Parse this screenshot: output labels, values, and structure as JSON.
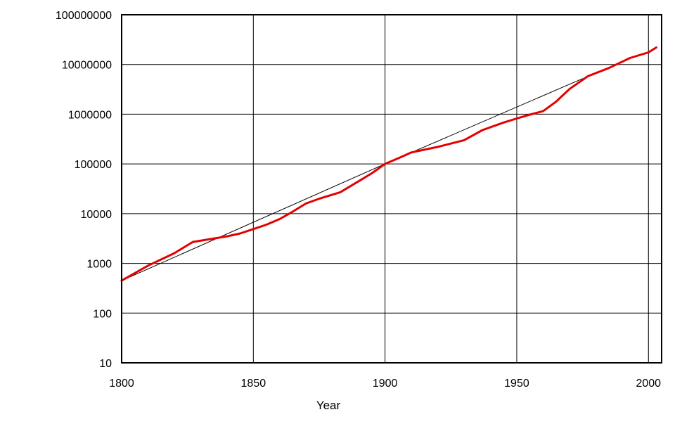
{
  "chart_data": {
    "type": "line",
    "title": "",
    "xlabel": "Year",
    "ylabel": "",
    "xlim": [
      1800,
      2005
    ],
    "ylim": [
      10,
      100000000
    ],
    "yscale": "log",
    "grid": true,
    "x_ticks": [
      "1800",
      "1850",
      "1900",
      "1950",
      "2000"
    ],
    "y_ticks": [
      "10",
      "100",
      "1000",
      "10000",
      "100000",
      "1000000",
      "10000000",
      "100000000"
    ],
    "series": [
      {
        "color": "#e30000",
        "style": "thick",
        "x": [
          1800,
          1810,
          1820,
          1827,
          1840,
          1845,
          1850,
          1855,
          1860,
          1865,
          1870,
          1875,
          1883,
          1890,
          1895,
          1900,
          1905,
          1910,
          1920,
          1930,
          1937,
          1945,
          1950,
          1955,
          1960,
          1965,
          1970,
          1977,
          1985,
          1993,
          2000,
          2003
        ],
        "y": [
          450,
          900,
          1600,
          2700,
          3500,
          4000,
          4900,
          6000,
          7800,
          11000,
          16000,
          20000,
          27000,
          45000,
          65000,
          100000,
          130000,
          170000,
          220000,
          300000,
          480000,
          680000,
          820000,
          980000,
          1150000,
          1800000,
          3200000,
          5800000,
          8500000,
          13500000,
          17500000,
          22000000
        ]
      },
      {
        "color": "#000000",
        "style": "thin",
        "x": [
          1800,
          1900,
          1975
        ],
        "y": [
          450,
          100000,
          5200000
        ]
      }
    ]
  }
}
